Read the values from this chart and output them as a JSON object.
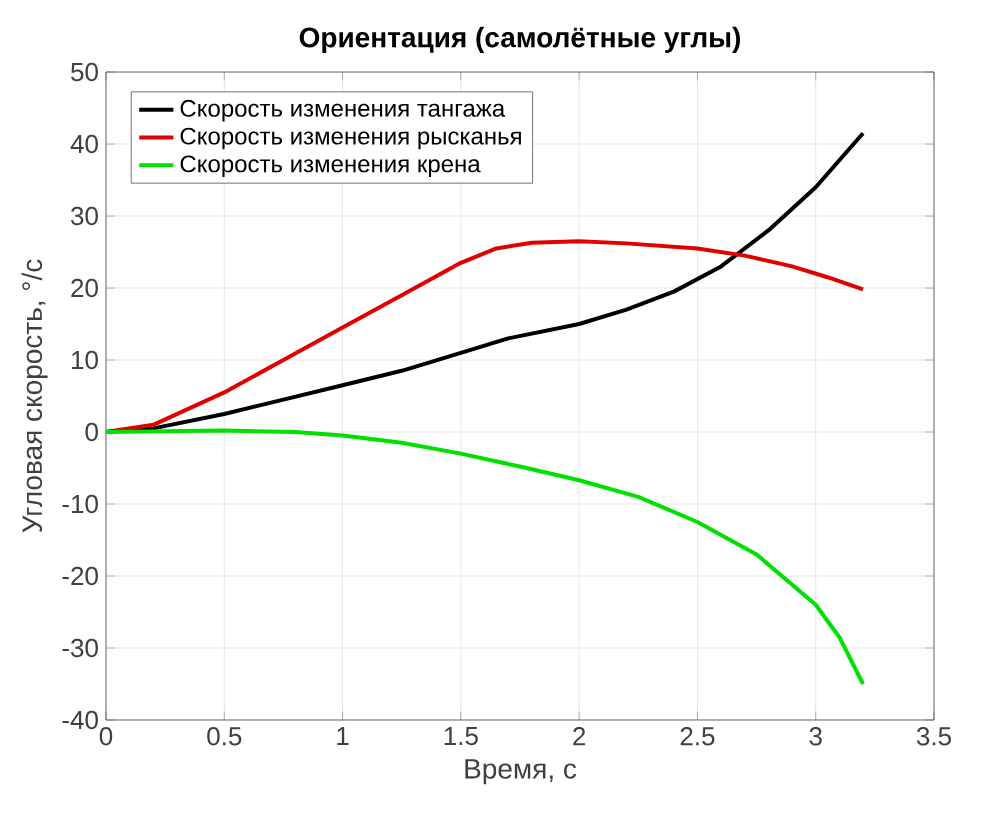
{
  "chart_data": {
    "type": "line",
    "title": "Ориентация (самолётные углы)",
    "xlabel": "Время, с",
    "ylabel": "Угловая скорость, °/с",
    "xlim": [
      0,
      3.5
    ],
    "ylim": [
      -40,
      50
    ],
    "xticks": [
      0,
      0.5,
      1,
      1.5,
      2,
      2.5,
      3,
      3.5
    ],
    "yticks": [
      -40,
      -30,
      -20,
      -10,
      0,
      10,
      20,
      30,
      40,
      50
    ],
    "grid": true,
    "legend": "top left",
    "line_style": "solid",
    "series": [
      {
        "name": "Скорость изменения тангажа",
        "color": "#000000",
        "x": [
          0,
          0.2,
          0.5,
          0.75,
          1,
          1.25,
          1.5,
          1.7,
          2,
          2.2,
          2.4,
          2.6,
          2.8,
          3,
          3.2
        ],
        "values": [
          0,
          0.5,
          2.5,
          4.5,
          6.5,
          8.5,
          11,
          13,
          15,
          17,
          19.5,
          23,
          28,
          34,
          41.5
        ]
      },
      {
        "name": "Скорость изменения рысканья",
        "color": "#e00000",
        "x": [
          0,
          0.2,
          0.5,
          0.75,
          1,
          1.25,
          1.5,
          1.65,
          1.8,
          2,
          2.2,
          2.5,
          2.7,
          2.9,
          3.05,
          3.2
        ],
        "values": [
          0,
          1,
          5.5,
          10,
          14.5,
          19,
          23.5,
          25.5,
          26.3,
          26.5,
          26.2,
          25.5,
          24.5,
          23,
          21.5,
          19.8
        ]
      },
      {
        "name": "Скорость изменения крена",
        "color": "#00e000",
        "x": [
          0,
          0.5,
          0.8,
          1,
          1.25,
          1.5,
          1.75,
          2,
          2.25,
          2.5,
          2.75,
          3,
          3.1,
          3.2
        ],
        "values": [
          0,
          0.2,
          0,
          -0.5,
          -1.5,
          -3,
          -4.8,
          -6.7,
          -9,
          -12.5,
          -17,
          -24,
          -28.5,
          -35
        ]
      }
    ]
  }
}
